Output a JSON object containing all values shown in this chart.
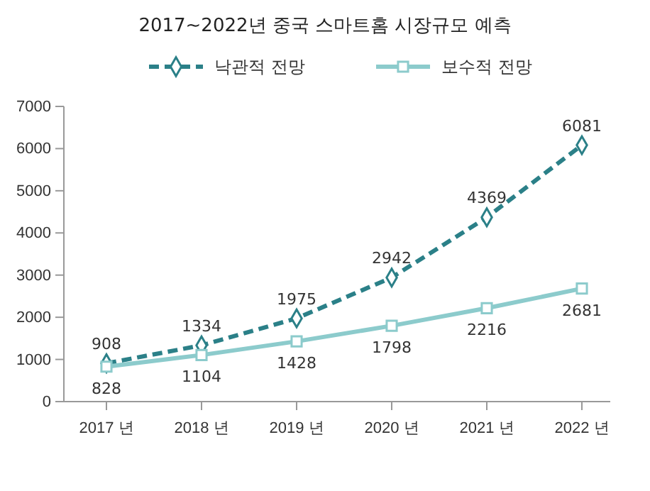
{
  "chart_data": {
    "type": "line",
    "title": "2017~2022년 중국 스마트홈 시장규모 예측",
    "categories": [
      "2017 년",
      "2018 년",
      "2019 년",
      "2020 년",
      "2021 년",
      "2022 년"
    ],
    "series": [
      {
        "name": "낙관적 전망",
        "color": "#2b8088",
        "values": [
          908,
          1334,
          1975,
          2942,
          4369,
          6081
        ],
        "line_style": "dashed",
        "marker": "diamond"
      },
      {
        "name": "보수적 전망",
        "color": "#8ccbcc",
        "values": [
          828,
          1104,
          1428,
          1798,
          2216,
          2681
        ],
        "line_style": "solid",
        "marker": "square"
      }
    ],
    "ylim": [
      0,
      7000
    ],
    "yticks": [
      0,
      1000,
      2000,
      3000,
      4000,
      5000,
      6000,
      7000
    ],
    "grid": false,
    "legend": "top",
    "data_labels": true
  }
}
